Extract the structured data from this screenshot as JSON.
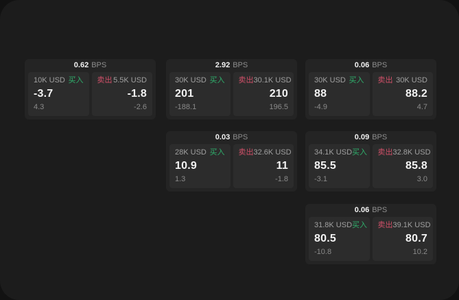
{
  "labels": {
    "bps_unit": "BPS",
    "buy": "买入",
    "sell": "卖出"
  },
  "colors": {
    "page_background": "#1c1c1c",
    "card_background": "#242424",
    "panel_background": "#2c2c2c",
    "buy_green": "#2fae6b",
    "sell_red": "#d05068"
  },
  "cards": [
    {
      "bps": "0.62",
      "buy": {
        "size": "10K USD",
        "price": "-3.7",
        "delta": "4.3"
      },
      "sell": {
        "size": "5.5K USD",
        "price": "-1.8",
        "delta": "-2.6"
      }
    },
    {
      "bps": "2.92",
      "buy": {
        "size": "30K USD",
        "price": "201",
        "delta": "-188.1"
      },
      "sell": {
        "size": "30.1K USD",
        "price": "210",
        "delta": "196.5"
      }
    },
    {
      "bps": "0.06",
      "buy": {
        "size": "30K USD",
        "price": "88",
        "delta": "-4.9"
      },
      "sell": {
        "size": "30K USD",
        "price": "88.2",
        "delta": "4.7"
      }
    },
    {
      "bps": "0.03",
      "buy": {
        "size": "28K USD",
        "price": "10.9",
        "delta": "1.3"
      },
      "sell": {
        "size": "32.6K USD",
        "price": "11",
        "delta": "-1.8"
      }
    },
    {
      "bps": "0.09",
      "buy": {
        "size": "34.1K USD",
        "price": "85.5",
        "delta": "-3.1"
      },
      "sell": {
        "size": "32.8K USD",
        "price": "85.8",
        "delta": "3.0"
      }
    },
    {
      "bps": "0.06",
      "buy": {
        "size": "31.8K USD",
        "price": "80.5",
        "delta": "-10.8"
      },
      "sell": {
        "size": "39.1K USD",
        "price": "80.7",
        "delta": "10.2"
      }
    }
  ]
}
